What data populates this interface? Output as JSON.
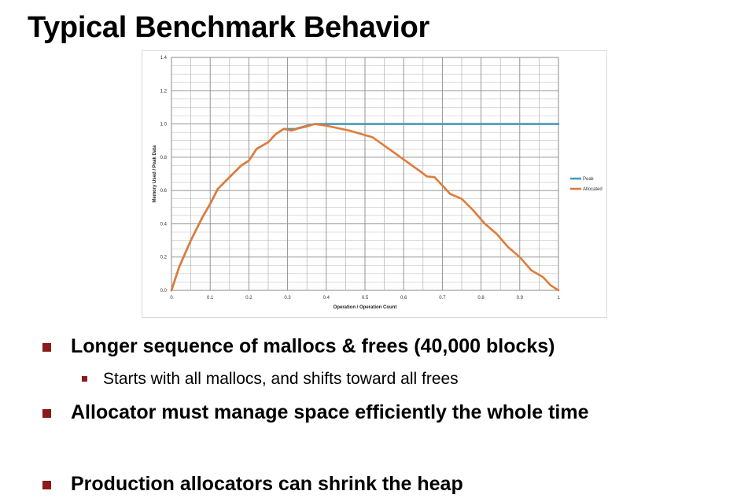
{
  "title": "Typical Benchmark Behavior",
  "chart_data": {
    "type": "line",
    "title": "",
    "xlabel": "Operation / Operation Count",
    "ylabel": "Memory Used / Peak Data",
    "xlim": [
      0,
      1
    ],
    "ylim": [
      0,
      1.4
    ],
    "x_ticks": [
      "0",
      "0.1",
      "0.2",
      "0.3",
      "0.4",
      "0.5",
      "0.6",
      "0.7",
      "0.8",
      "0.9",
      "1"
    ],
    "y_ticks": [
      "0.0",
      "0.2",
      "0.4",
      "0.6",
      "0.8",
      "1.0",
      "1.2",
      "1.4"
    ],
    "grid": true,
    "legend_position": "right",
    "series": [
      {
        "name": "Peak",
        "color": "#4a9bb5",
        "points": [
          [
            0,
            0
          ],
          [
            0.02,
            0.14
          ],
          [
            0.05,
            0.3
          ],
          [
            0.08,
            0.44
          ],
          [
            0.1,
            0.52
          ],
          [
            0.12,
            0.61
          ],
          [
            0.15,
            0.68
          ],
          [
            0.18,
            0.75
          ],
          [
            0.2,
            0.78
          ],
          [
            0.22,
            0.85
          ],
          [
            0.25,
            0.89
          ],
          [
            0.27,
            0.94
          ],
          [
            0.29,
            0.97
          ],
          [
            0.32,
            0.97
          ],
          [
            0.35,
            0.99
          ],
          [
            0.37,
            1.0
          ],
          [
            1.0,
            1.0
          ]
        ]
      },
      {
        "name": "Allocated",
        "color": "#e07b39",
        "points": [
          [
            0,
            0
          ],
          [
            0.02,
            0.14
          ],
          [
            0.05,
            0.3
          ],
          [
            0.08,
            0.44
          ],
          [
            0.1,
            0.52
          ],
          [
            0.12,
            0.61
          ],
          [
            0.15,
            0.68
          ],
          [
            0.18,
            0.75
          ],
          [
            0.2,
            0.78
          ],
          [
            0.22,
            0.85
          ],
          [
            0.25,
            0.89
          ],
          [
            0.27,
            0.94
          ],
          [
            0.29,
            0.97
          ],
          [
            0.31,
            0.96
          ],
          [
            0.33,
            0.975
          ],
          [
            0.35,
            0.985
          ],
          [
            0.37,
            1.0
          ],
          [
            0.4,
            0.99
          ],
          [
            0.43,
            0.975
          ],
          [
            0.46,
            0.96
          ],
          [
            0.49,
            0.94
          ],
          [
            0.52,
            0.92
          ],
          [
            0.55,
            0.87
          ],
          [
            0.58,
            0.82
          ],
          [
            0.61,
            0.77
          ],
          [
            0.64,
            0.72
          ],
          [
            0.66,
            0.685
          ],
          [
            0.68,
            0.68
          ],
          [
            0.7,
            0.63
          ],
          [
            0.72,
            0.58
          ],
          [
            0.75,
            0.55
          ],
          [
            0.78,
            0.48
          ],
          [
            0.81,
            0.4
          ],
          [
            0.84,
            0.34
          ],
          [
            0.87,
            0.26
          ],
          [
            0.9,
            0.2
          ],
          [
            0.93,
            0.12
          ],
          [
            0.96,
            0.08
          ],
          [
            0.98,
            0.03
          ],
          [
            1.0,
            0.0
          ]
        ]
      }
    ]
  },
  "bullets": [
    {
      "level": 1,
      "text": "Longer sequence of mallocs & frees (40,000 blocks)"
    },
    {
      "level": 2,
      "text": "Starts with all mallocs, and shifts toward all frees"
    },
    {
      "level": 1,
      "text": "Allocator must manage space efficiently the whole time"
    },
    {
      "level": 1,
      "text": "Production allocators can shrink the heap"
    }
  ]
}
